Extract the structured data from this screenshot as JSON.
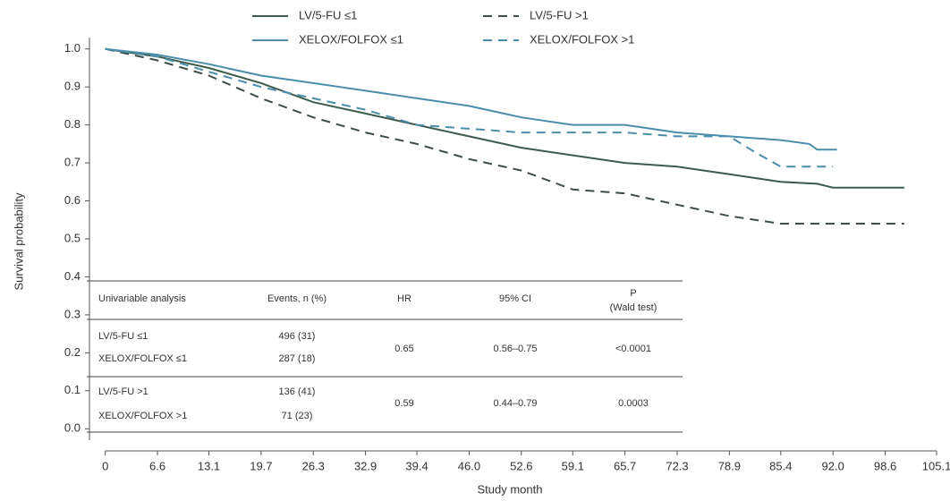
{
  "chart_data": {
    "type": "line",
    "x_label": "Study month",
    "y_label": "Survival probability",
    "xlim": [
      -2,
      106
    ],
    "ylim": [
      -0.03,
      1.03
    ],
    "xticks": [
      0,
      6.6,
      13.1,
      19.7,
      26.3,
      32.9,
      39.4,
      {
        "value": 46,
        "label": "46.0"
      },
      52.6,
      59.1,
      65.7,
      72.3,
      78.9,
      85.4,
      {
        "value": 92,
        "label": "92.0"
      },
      98.6,
      105.1
    ],
    "yticks": [
      {
        "value": 0,
        "label": "0.0"
      },
      0.1,
      0.2,
      0.3,
      0.4,
      0.5,
      0.6,
      0.7,
      0.8,
      0.9,
      {
        "value": 1,
        "label": "1.0"
      }
    ],
    "series": [
      {
        "name": "LV/5-FU ≤1",
        "color": "#3d5b4c",
        "line_style": "solid",
        "x": [
          0,
          6.6,
          13.1,
          19.7,
          26.3,
          32.9,
          39.4,
          46,
          52.6,
          59.1,
          65.7,
          72.3,
          78.9,
          85.4,
          90,
          92,
          101
        ],
        "values": [
          1.0,
          0.98,
          0.95,
          0.91,
          0.86,
          0.83,
          0.8,
          0.77,
          0.74,
          0.72,
          0.7,
          0.69,
          0.67,
          0.65,
          0.645,
          0.635,
          0.635
        ]
      },
      {
        "name": "XELOX/FOLFOX ≤1",
        "color": "#4b8daa",
        "line_style": "solid",
        "x": [
          0,
          6.6,
          13.1,
          19.7,
          26.3,
          32.9,
          39.4,
          46,
          52.6,
          59.1,
          65.7,
          72.3,
          78.9,
          85.4,
          89,
          90,
          92.5
        ],
        "values": [
          1.0,
          0.985,
          0.96,
          0.93,
          0.91,
          0.89,
          0.87,
          0.85,
          0.82,
          0.8,
          0.8,
          0.78,
          0.77,
          0.76,
          0.75,
          0.735,
          0.735
        ]
      },
      {
        "name": "LV/5-FU >1",
        "color": "#3d4d4a",
        "line_style": "dashed",
        "x": [
          0,
          6.6,
          13.1,
          19.7,
          26.3,
          32.9,
          39.4,
          46,
          52.6,
          59.1,
          65.7,
          72.3,
          78.9,
          85.4,
          92,
          101
        ],
        "values": [
          1.0,
          0.97,
          0.93,
          0.87,
          0.82,
          0.78,
          0.75,
          0.71,
          0.68,
          0.63,
          0.62,
          0.59,
          0.56,
          0.54,
          0.54,
          0.54
        ]
      },
      {
        "name": "XELOX/FOLFOX >1",
        "color": "#4b8daa",
        "line_style": "dashed",
        "x": [
          0,
          6.6,
          13.1,
          19.7,
          26.3,
          32.9,
          39.4,
          46,
          52.6,
          59.1,
          65.7,
          72.3,
          78.9,
          82,
          85.4,
          92
        ],
        "values": [
          1.0,
          0.98,
          0.94,
          0.9,
          0.87,
          0.84,
          0.8,
          0.79,
          0.78,
          0.78,
          0.78,
          0.77,
          0.77,
          0.73,
          0.69,
          0.69
        ]
      }
    ],
    "table": {
      "columns": [
        "Univariable analysis",
        "Events, n (%)",
        "HR",
        "95% CI",
        "P"
      ],
      "p_note": "(Wald test)",
      "rows": [
        [
          "LV/5-FU ≤1",
          "496 (31)"
        ],
        [
          "XELOX/FOLFOX ≤1",
          "287 (18)"
        ],
        [
          "LV/5-FU >1",
          "136 (41)"
        ],
        [
          "XELOX/FOLFOX >1",
          "71 (23)"
        ]
      ],
      "groups": [
        [
          "0.65",
          "0.56–0.75",
          "<0.0001"
        ],
        [
          "0.59",
          "0.44–0.79",
          "0.0003"
        ]
      ]
    }
  }
}
